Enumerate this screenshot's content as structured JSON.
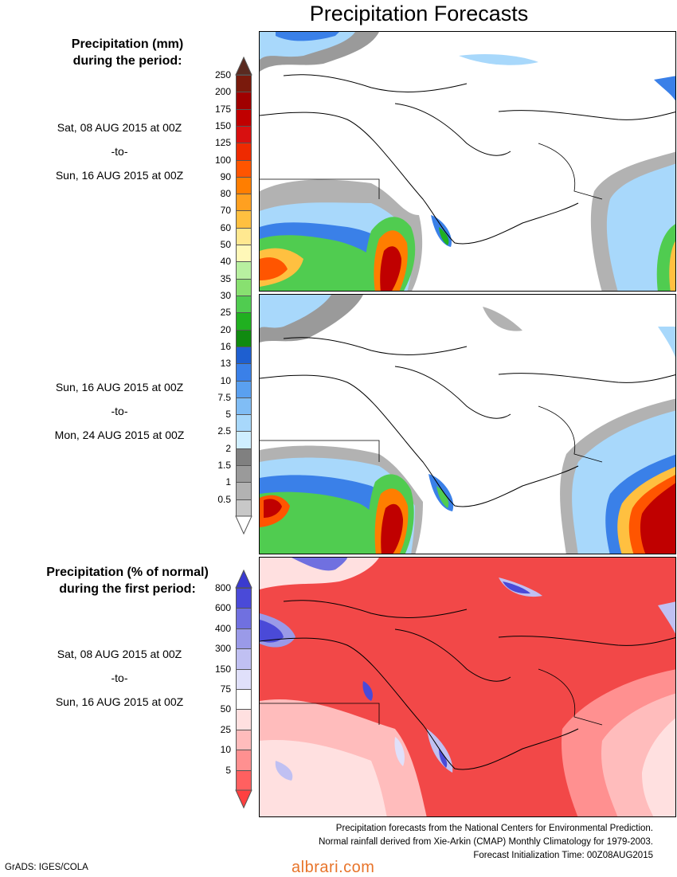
{
  "title": "Precipitation Forecasts",
  "section1": {
    "heading": [
      "Precipitation (mm)",
      "during the period:"
    ],
    "dates": [
      "Sat, 08 AUG 2015 at 00Z",
      "-to-",
      "Sun, 16 AUG 2015 at 00Z"
    ]
  },
  "section2": {
    "dates": [
      "Sun, 16 AUG 2015 at 00Z",
      "-to-",
      "Mon, 24 AUG 2015 at 00Z"
    ]
  },
  "section3": {
    "heading": [
      "Precipitation (% of normal)",
      "during the first period:"
    ],
    "dates": [
      "Sat, 08 AUG 2015 at 00Z",
      "-to-",
      "Sun, 16 AUG 2015 at 00Z"
    ]
  },
  "precip_scale": {
    "labels": [
      "250",
      "200",
      "175",
      "150",
      "125",
      "100",
      "90",
      "80",
      "70",
      "60",
      "50",
      "40",
      "35",
      "30",
      "25",
      "20",
      "16",
      "13",
      "10",
      "7.5",
      "5",
      "2.5",
      "2",
      "1.5",
      "1",
      "0.5"
    ],
    "colors": [
      "#7a1a0c",
      "#a00000",
      "#c00000",
      "#d81010",
      "#ee2a00",
      "#ff5500",
      "#ff7e00",
      "#ffa020",
      "#ffc040",
      "#ffe890",
      "#fff8b8",
      "#b8f0a0",
      "#88e070",
      "#50cc50",
      "#20b020",
      "#108a10",
      "#1e5fd0",
      "#3a80e8",
      "#5aa0f0",
      "#80bdf5",
      "#a8d8fb",
      "#cfeeff",
      "#808080",
      "#9a9a9a",
      "#b2b2b2",
      "#c8c8c8"
    ],
    "top_arrow": "#5a2a20",
    "bottom_arrow": "#ffffff"
  },
  "percent_scale": {
    "labels": [
      "800",
      "600",
      "400",
      "300",
      "150",
      "75",
      "50",
      "25",
      "10",
      "5"
    ],
    "colors": [
      "#4a4ad8",
      "#7070e0",
      "#9a9ae8",
      "#c0c0f2",
      "#e0e0fa",
      "#ffffff",
      "#ffe0e0",
      "#ffbcbc",
      "#ff9090",
      "#ff6060"
    ],
    "top_arrow": "#3a3ad0",
    "bottom_arrow": "#ff4040"
  },
  "footer": [
    "Precipitation forecasts from the National Centers for Environmental Prediction.",
    "Normal rainfall derived from Xie-Arkin (CMAP) Monthly Climatology for 1979-2003.",
    "Forecast Initialization Time: 00Z08AUG2015"
  ],
  "credit": "GrADS: IGES/COLA",
  "watermark": "albrari.com"
}
